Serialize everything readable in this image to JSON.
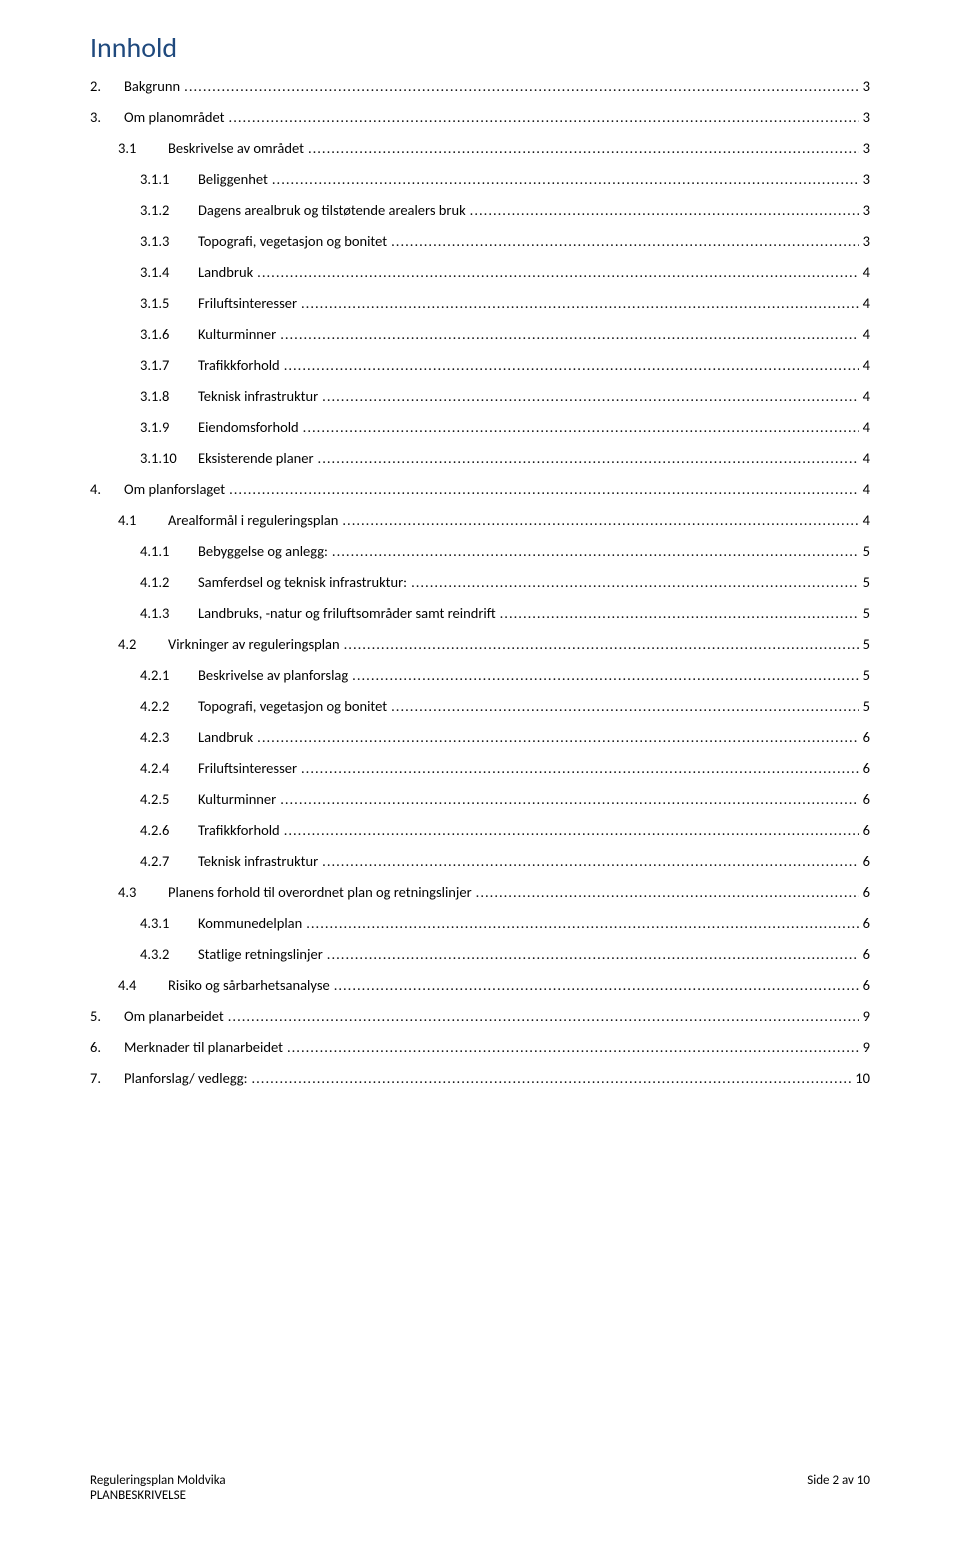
{
  "title": "Innhold",
  "colors": {
    "title": "#1f497d",
    "text": "#000000",
    "background": "#ffffff",
    "dot": "#000000"
  },
  "typography": {
    "title_fontsize_pt": 21,
    "body_fontsize_pt": 11,
    "footer_fontsize_pt": 10,
    "font_family": "Calibri"
  },
  "toc": [
    {
      "level": 0,
      "num": "2.",
      "label": "Bakgrunn",
      "page": "3"
    },
    {
      "level": 0,
      "num": "3.",
      "label": "Om planområdet",
      "page": "3"
    },
    {
      "level": 1,
      "num": "3.1",
      "label": "Beskrivelse av området",
      "page": "3"
    },
    {
      "level": 2,
      "num": "3.1.1",
      "label": "Beliggenhet",
      "page": "3"
    },
    {
      "level": 2,
      "num": "3.1.2",
      "label": "Dagens arealbruk og tilstøtende arealers bruk",
      "page": "3"
    },
    {
      "level": 2,
      "num": "3.1.3",
      "label": "Topografi, vegetasjon og bonitet",
      "page": "3"
    },
    {
      "level": 2,
      "num": "3.1.4",
      "label": "Landbruk",
      "page": "4"
    },
    {
      "level": 2,
      "num": "3.1.5",
      "label": "Friluftsinteresser",
      "page": "4"
    },
    {
      "level": 2,
      "num": "3.1.6",
      "label": "Kulturminner",
      "page": "4"
    },
    {
      "level": 2,
      "num": "3.1.7",
      "label": "Trafikkforhold",
      "page": "4"
    },
    {
      "level": 2,
      "num": "3.1.8",
      "label": "Teknisk infrastruktur",
      "page": "4"
    },
    {
      "level": 2,
      "num": "3.1.9",
      "label": "Eiendomsforhold",
      "page": "4"
    },
    {
      "level": 2,
      "num": "3.1.10",
      "label": "Eksisterende planer",
      "page": "4"
    },
    {
      "level": 0,
      "num": "4.",
      "label": "Om planforslaget",
      "page": "4"
    },
    {
      "level": 1,
      "num": "4.1",
      "label": "Arealformål i reguleringsplan",
      "page": "4"
    },
    {
      "level": 2,
      "num": "4.1.1",
      "label": "Bebyggelse og anlegg:",
      "page": "5"
    },
    {
      "level": 2,
      "num": "4.1.2",
      "label": "Samferdsel og teknisk infrastruktur:",
      "page": "5"
    },
    {
      "level": 2,
      "num": "4.1.3",
      "label": "Landbruks, -natur og friluftsområder samt reindrift",
      "page": "5"
    },
    {
      "level": 1,
      "num": "4.2",
      "label": "Virkninger av reguleringsplan",
      "page": "5"
    },
    {
      "level": 2,
      "num": "4.2.1",
      "label": "Beskrivelse av planforslag",
      "page": "5"
    },
    {
      "level": 2,
      "num": "4.2.2",
      "label": "Topografi, vegetasjon og bonitet",
      "page": "5"
    },
    {
      "level": 2,
      "num": "4.2.3",
      "label": "Landbruk",
      "page": "6"
    },
    {
      "level": 2,
      "num": "4.2.4",
      "label": "Friluftsinteresser",
      "page": "6"
    },
    {
      "level": 2,
      "num": "4.2.5",
      "label": "Kulturminner",
      "page": "6"
    },
    {
      "level": 2,
      "num": "4.2.6",
      "label": "Trafikkforhold",
      "page": "6"
    },
    {
      "level": 2,
      "num": "4.2.7",
      "label": "Teknisk infrastruktur",
      "page": "6"
    },
    {
      "level": 1,
      "num": "4.3",
      "label": "Planens forhold til overordnet plan og retningslinjer",
      "page": "6"
    },
    {
      "level": 2,
      "num": "4.3.1",
      "label": "Kommunedelplan",
      "page": "6"
    },
    {
      "level": 2,
      "num": "4.3.2",
      "label": "Statlige retningslinjer",
      "page": "6"
    },
    {
      "level": 1,
      "num": "4.4",
      "label": "Risiko og sårbarhetsanalyse",
      "page": "6"
    },
    {
      "level": 0,
      "num": "5.",
      "label": "Om planarbeidet",
      "page": "9"
    },
    {
      "level": 0,
      "num": "6.",
      "label": "Merknader til planarbeidet",
      "page": "9"
    },
    {
      "level": 0,
      "num": "7.",
      "label": "Planforslag/ vedlegg:",
      "page": "10"
    }
  ],
  "footer": {
    "left_line1": "Reguleringsplan Moldvika",
    "left_line2": "PLANBESKRIVELSE",
    "right": "Side 2 av 10"
  }
}
